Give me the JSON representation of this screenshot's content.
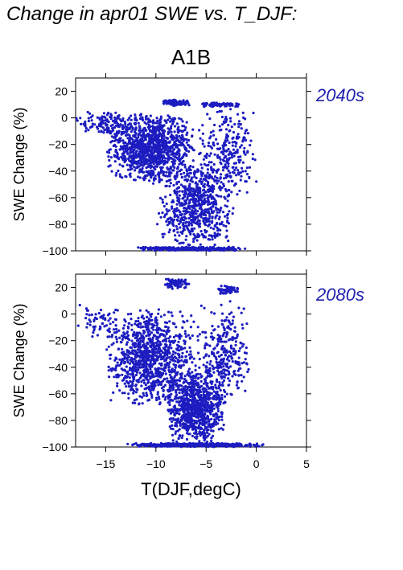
{
  "title": "Change in apr01 SWE vs. T_DJF:",
  "subtitle": "A1B",
  "colors": {
    "points": "#1c1cc0",
    "panel_label": "#2020b0"
  },
  "chart_data": [
    {
      "type": "scatter",
      "panel_label": "2040s",
      "xlabel": "",
      "ylabel": "SWE Change (%)",
      "xlim": [
        -18,
        5
      ],
      "ylim": [
        -100,
        30
      ],
      "xticks": [
        -15,
        -10,
        -5,
        0,
        5
      ],
      "yticks": [
        20,
        0,
        -20,
        -40,
        -60,
        -80,
        -100
      ],
      "ytick_labels": [
        "20",
        "0",
        "−20",
        "−40",
        "−60",
        "−80",
        "−100"
      ],
      "grid": false,
      "clusters": [
        {
          "x": [
            -15,
            -6
          ],
          "y": [
            -50,
            5
          ],
          "n": 1100
        },
        {
          "x": [
            -18,
            -12
          ],
          "y": [
            -15,
            5
          ],
          "n": 120
        },
        {
          "x": [
            -10,
            -2
          ],
          "y": [
            -100,
            -30
          ],
          "n": 700
        },
        {
          "x": [
            -12,
            -1
          ],
          "y": [
            -100,
            -97
          ],
          "n": 300
        },
        {
          "x": [
            -9.5,
            -6.5
          ],
          "y": [
            9,
            14
          ],
          "n": 80
        },
        {
          "x": [
            -6,
            -1.5
          ],
          "y": [
            8,
            12
          ],
          "n": 70
        },
        {
          "x": [
            -6,
            0.5
          ],
          "y": [
            -60,
            10
          ],
          "n": 250
        }
      ]
    },
    {
      "type": "scatter",
      "panel_label": "2080s",
      "xlabel": "T(DJF,degC)",
      "ylabel": "SWE Change (%)",
      "xlim": [
        -18,
        5
      ],
      "ylim": [
        -100,
        30
      ],
      "xticks": [
        -15,
        -10,
        -5,
        0,
        5
      ],
      "xtick_labels": [
        "−15",
        "−10",
        "−5",
        "0",
        "5"
      ],
      "yticks": [
        20,
        0,
        -20,
        -40,
        -60,
        -80,
        -100
      ],
      "ytick_labels": [
        "20",
        "0",
        "−20",
        "−40",
        "−60",
        "−80",
        "−100"
      ],
      "grid": false,
      "clusters": [
        {
          "x": [
            -15,
            -6
          ],
          "y": [
            -70,
            5
          ],
          "n": 1000
        },
        {
          "x": [
            -18,
            -13
          ],
          "y": [
            -20,
            10
          ],
          "n": 60
        },
        {
          "x": [
            -9,
            -3
          ],
          "y": [
            -100,
            -40
          ],
          "n": 900
        },
        {
          "x": [
            -13,
            1
          ],
          "y": [
            -100,
            -97
          ],
          "n": 450
        },
        {
          "x": [
            -9.5,
            -6.5
          ],
          "y": [
            18,
            28
          ],
          "n": 80
        },
        {
          "x": [
            -4,
            -1.5
          ],
          "y": [
            15,
            22
          ],
          "n": 60
        },
        {
          "x": [
            -6,
            -0.5
          ],
          "y": [
            -70,
            10
          ],
          "n": 300
        }
      ]
    }
  ]
}
